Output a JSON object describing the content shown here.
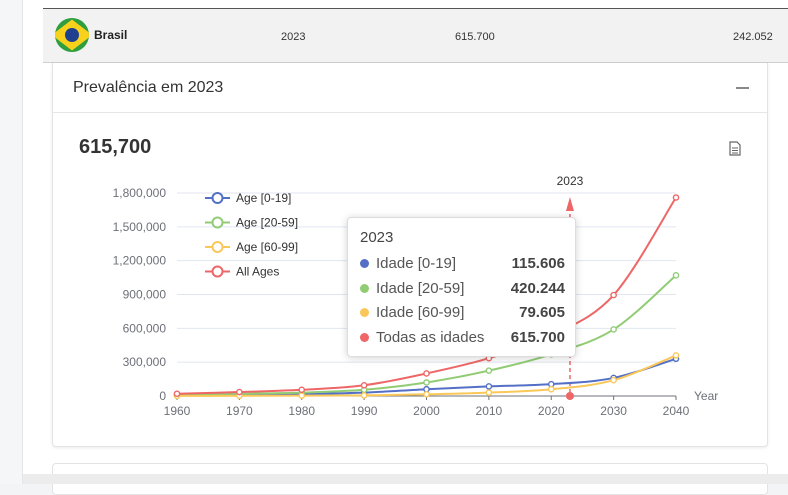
{
  "row": {
    "country": "Brasil",
    "year": "2023",
    "value1": "615.700",
    "value2": "242.052"
  },
  "card": {
    "title": "Prevalência em 2023",
    "big_value": "615,700"
  },
  "tooltip": {
    "title": "2023",
    "items": [
      {
        "name": "Idade [0-19]",
        "value": "115.606",
        "color": "#5470c6"
      },
      {
        "name": "Idade [20-59]",
        "value": "420.244",
        "color": "#91cc75"
      },
      {
        "name": "Idade [60-99]",
        "value": "79.605",
        "color": "#fac858"
      },
      {
        "name": "Todas as idades",
        "value": "615.700",
        "color": "#ee6666"
      }
    ]
  },
  "chart_data": {
    "type": "line",
    "title": "",
    "xlabel": "Year",
    "ylabel": "",
    "x": [
      1960,
      1970,
      1980,
      1990,
      2000,
      2010,
      2020,
      2030,
      2040
    ],
    "x_ticks": [
      "1960",
      "1970",
      "1980",
      "1990",
      "2000",
      "2010",
      "2020",
      "2030",
      "2040"
    ],
    "y_ticks": [
      "0",
      "300,000",
      "600,000",
      "900,000",
      "1,200,000",
      "1,500,000",
      "1,800,000"
    ],
    "xlim": [
      1960,
      2040
    ],
    "ylim": [
      0,
      1800000
    ],
    "series": [
      {
        "name": "Age [0-19]",
        "color": "#5470c6",
        "values": [
          5000,
          10000,
          18000,
          30000,
          60000,
          85000,
          105000,
          160000,
          330000
        ]
      },
      {
        "name": "Age [20-59]",
        "color": "#91cc75",
        "values": [
          10000,
          20000,
          30000,
          55000,
          120000,
          225000,
          370000,
          590000,
          1070000
        ]
      },
      {
        "name": "Age [60-99]",
        "color": "#fac858",
        "values": [
          1000,
          2000,
          3000,
          5000,
          15000,
          30000,
          60000,
          140000,
          360000
        ]
      },
      {
        "name": "All Ages",
        "color": "#ee6666",
        "values": [
          20000,
          35000,
          55000,
          95000,
          200000,
          335000,
          535000,
          895000,
          1760000
        ]
      }
    ],
    "marker_line": {
      "label": "2023",
      "x": 2023
    },
    "legend_position": "top-left",
    "grid": true
  }
}
